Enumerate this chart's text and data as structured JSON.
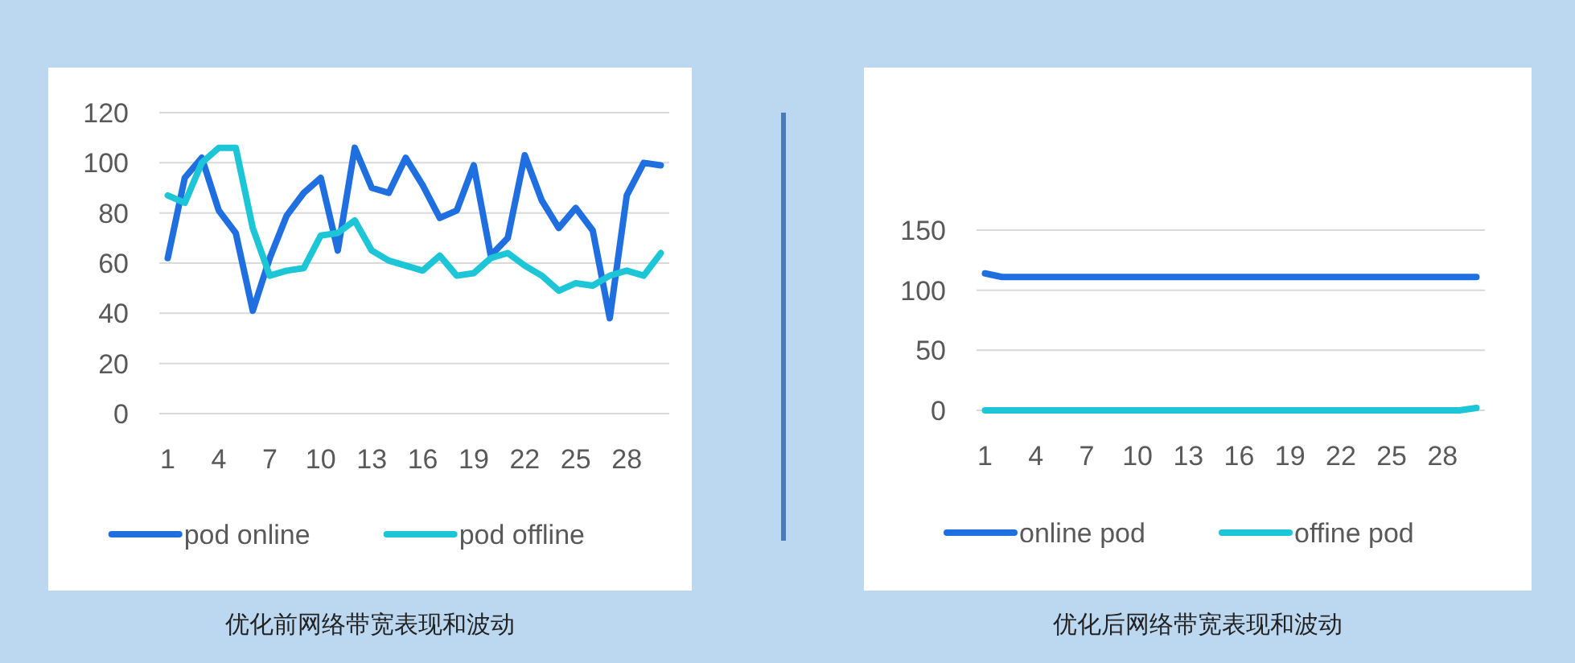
{
  "chart_data": [
    {
      "type": "line",
      "title": "优化前网络带宽表现和波动",
      "categories": [
        "1",
        null,
        null,
        "4",
        null,
        null,
        "7",
        null,
        null,
        "10",
        null,
        null,
        "13",
        null,
        null,
        "16",
        null,
        null,
        "19",
        null,
        null,
        "22",
        null,
        null,
        "25",
        null,
        null,
        "28",
        null,
        null
      ],
      "ylim": [
        0,
        120
      ],
      "yticks": [
        0,
        20,
        40,
        60,
        80,
        100,
        120
      ],
      "grid": "y",
      "legend": "bottom",
      "series": [
        {
          "name": "pod online",
          "color": "#1f6fe0",
          "values": [
            62,
            94,
            102,
            81,
            72,
            41,
            62,
            79,
            88,
            94,
            65,
            106,
            90,
            88,
            102,
            91,
            78,
            81,
            99,
            63,
            70,
            103,
            85,
            74,
            82,
            73,
            38,
            87,
            100,
            99
          ]
        },
        {
          "name": "pod offline",
          "color": "#1cc6d6",
          "values": [
            87,
            84,
            100,
            106,
            106,
            74,
            55,
            57,
            58,
            71,
            72,
            77,
            65,
            61,
            59,
            57,
            63,
            55,
            56,
            62,
            64,
            59,
            55,
            49,
            52,
            51,
            55,
            57,
            55,
            64
          ]
        }
      ]
    },
    {
      "type": "line",
      "title": "优化后网络带宽表现和波动",
      "categories": [
        "1",
        null,
        null,
        "4",
        null,
        null,
        "7",
        null,
        null,
        "10",
        null,
        null,
        "13",
        null,
        null,
        "16",
        null,
        null,
        "19",
        null,
        null,
        "22",
        null,
        null,
        "25",
        null,
        null,
        "28",
        null,
        null
      ],
      "ylim": [
        0,
        150
      ],
      "yticks": [
        0,
        50,
        100,
        150
      ],
      "grid": "y",
      "legend": "bottom",
      "series": [
        {
          "name": "online pod",
          "color": "#1f6fe0",
          "values": [
            114,
            111,
            111,
            111,
            111,
            111,
            111,
            111,
            111,
            111,
            111,
            111,
            111,
            111,
            111,
            111,
            111,
            111,
            111,
            111,
            111,
            111,
            111,
            111,
            111,
            111,
            111,
            111,
            111,
            111
          ]
        },
        {
          "name": "offine pod",
          "color": "#1cc6d6",
          "values": [
            0,
            0,
            0,
            0,
            0,
            0,
            0,
            0,
            0,
            0,
            0,
            0,
            0,
            0,
            0,
            0,
            0,
            0,
            0,
            0,
            0,
            0,
            0,
            0,
            0,
            0,
            0,
            0,
            0,
            2
          ]
        }
      ]
    }
  ]
}
